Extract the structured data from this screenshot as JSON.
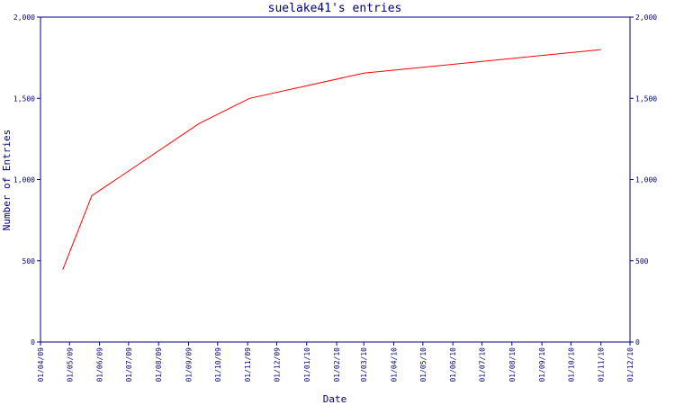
{
  "chart_data": {
    "type": "line",
    "title": "suelake41's entries",
    "xlabel": "Date",
    "ylabel": "Number of Entries",
    "ylim": [
      0,
      2000
    ],
    "yticks": [
      0,
      500,
      1000,
      1500,
      2000
    ],
    "ytick_labels": [
      "0",
      "500",
      "1,000",
      "1,500",
      "2,000"
    ],
    "xlim": [
      "2009-04-01",
      "2010-12-01"
    ],
    "xticks": [
      {
        "date": "2009-04-01",
        "label": "01/04/09"
      },
      {
        "date": "2009-05-01",
        "label": "01/05/09"
      },
      {
        "date": "2009-06-01",
        "label": "01/06/09"
      },
      {
        "date": "2009-07-01",
        "label": "01/07/09"
      },
      {
        "date": "2009-08-01",
        "label": "01/08/09"
      },
      {
        "date": "2009-09-01",
        "label": "01/09/09"
      },
      {
        "date": "2009-10-01",
        "label": "01/10/09"
      },
      {
        "date": "2009-11-01",
        "label": "01/11/09"
      },
      {
        "date": "2009-12-01",
        "label": "01/12/09"
      },
      {
        "date": "2010-01-01",
        "label": "01/01/10"
      },
      {
        "date": "2010-02-01",
        "label": "01/02/10"
      },
      {
        "date": "2010-03-01",
        "label": "01/03/10"
      },
      {
        "date": "2010-04-01",
        "label": "01/04/10"
      },
      {
        "date": "2010-05-01",
        "label": "01/05/10"
      },
      {
        "date": "2010-06-01",
        "label": "01/06/10"
      },
      {
        "date": "2010-07-01",
        "label": "01/07/10"
      },
      {
        "date": "2010-08-01",
        "label": "01/08/10"
      },
      {
        "date": "2010-09-01",
        "label": "01/09/10"
      },
      {
        "date": "2010-10-01",
        "label": "01/10/10"
      },
      {
        "date": "2010-11-01",
        "label": "01/11/10"
      },
      {
        "date": "2010-12-01",
        "label": "01/12/10"
      }
    ],
    "series": [
      {
        "color": "#ff0000",
        "points": [
          {
            "x": "2009-04-24",
            "y": 445
          },
          {
            "x": "2009-05-24",
            "y": 900
          },
          {
            "x": "2009-09-12",
            "y": 1345
          },
          {
            "x": "2009-11-03",
            "y": 1500
          },
          {
            "x": "2010-03-01",
            "y": 1655
          },
          {
            "x": "2010-11-01",
            "y": 1800
          }
        ]
      }
    ],
    "right_axis": true,
    "grid": false
  }
}
